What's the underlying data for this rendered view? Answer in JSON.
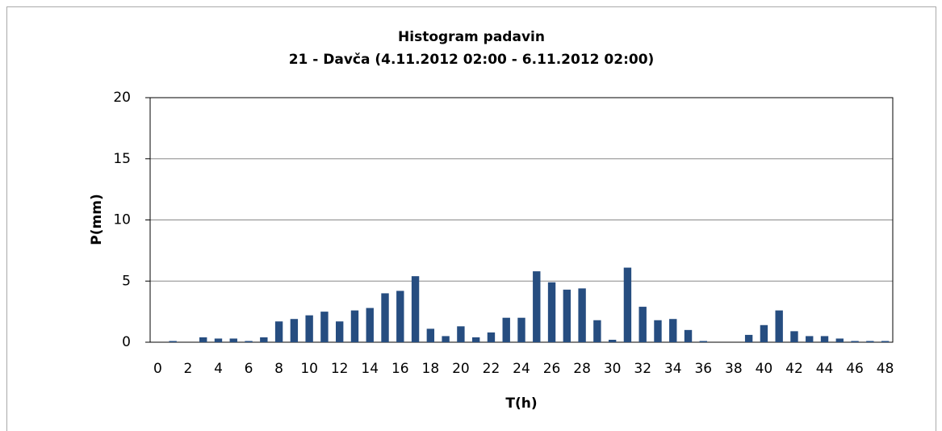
{
  "chart_data": {
    "type": "bar",
    "title": "Histogram padavin",
    "subtitle": "21 - Davča (4.11.2012 02:00 - 6.11.2012 02:00)",
    "x_label": "T(h)",
    "y_label": "P(mm)",
    "categories": [
      0,
      null,
      2,
      null,
      4,
      null,
      6,
      null,
      8,
      null,
      10,
      null,
      12,
      null,
      14,
      null,
      16,
      null,
      18,
      null,
      20,
      null,
      22,
      null,
      24,
      null,
      26,
      null,
      28,
      null,
      30,
      null,
      32,
      null,
      34,
      null,
      36,
      null,
      38,
      null,
      40,
      null,
      42,
      null,
      44,
      null,
      46,
      null,
      48
    ],
    "values": [
      0,
      0.1,
      0,
      0.4,
      0.3,
      0.3,
      0.1,
      0.4,
      1.7,
      1.9,
      2.2,
      2.5,
      1.7,
      2.6,
      2.8,
      4.0,
      4.2,
      5.4,
      1.1,
      0.5,
      1.3,
      0.4,
      0.8,
      2.0,
      2.0,
      5.8,
      4.9,
      4.3,
      4.4,
      1.8,
      0.2,
      6.1,
      2.9,
      1.8,
      1.9,
      1.0,
      0.1,
      0,
      0,
      0.6,
      1.4,
      2.6,
      0.9,
      0.5,
      0.5,
      0.3,
      0.1,
      0.1,
      0.1
    ],
    "color": "#264d80",
    "ylim": [
      0,
      20
    ],
    "yticks": [
      0,
      5,
      10,
      15,
      20
    ],
    "grid": true
  }
}
